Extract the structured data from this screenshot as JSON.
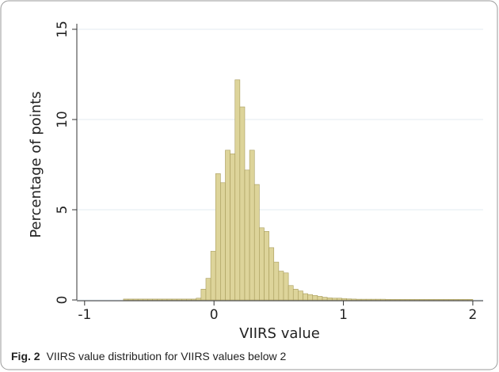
{
  "chart_data": {
    "type": "histogram",
    "xlabel": "VIIRS value",
    "ylabel": "Percentage of points",
    "bins": [
      -0.7,
      -0.6625,
      -0.625,
      -0.5875,
      -0.55,
      -0.5125,
      -0.475,
      -0.4375,
      -0.4,
      -0.3625,
      -0.325,
      -0.2875,
      -0.25,
      -0.2125,
      -0.175,
      -0.1375,
      -0.1,
      -0.0625,
      -0.025,
      0.0125,
      0.05,
      0.0875,
      0.125,
      0.1625,
      0.2,
      0.2375,
      0.275,
      0.3125,
      0.35,
      0.3875,
      0.425,
      0.4625,
      0.5,
      0.5375,
      0.575,
      0.6125,
      0.65,
      0.6875,
      0.725,
      0.7625,
      0.8,
      0.8375,
      0.875,
      0.9125,
      0.95,
      0.9875,
      1.025,
      1.0625,
      1.1,
      1.1375,
      1.175,
      1.2125,
      1.25,
      1.2875,
      1.325,
      1.3625,
      1.4,
      1.4375,
      1.475,
      1.5125,
      1.55,
      1.5875,
      1.625,
      1.6625,
      1.7,
      1.7375,
      1.775,
      1.8125,
      1.85,
      1.8875,
      1.925,
      1.9625,
      2.0
    ],
    "values": [
      0.05,
      0.05,
      0.05,
      0.05,
      0.05,
      0.05,
      0.05,
      0.05,
      0.05,
      0.05,
      0.05,
      0.05,
      0.05,
      0.05,
      0.05,
      0.1,
      0.6,
      1.2,
      2.7,
      7.0,
      6.5,
      8.3,
      8.1,
      12.2,
      10.7,
      7.2,
      8.3,
      6.4,
      4.0,
      3.8,
      2.9,
      2.1,
      1.6,
      1.5,
      0.8,
      0.6,
      0.5,
      0.35,
      0.3,
      0.25,
      0.2,
      0.15,
      0.12,
      0.1,
      0.1,
      0.08,
      0.06,
      0.05,
      0.04,
      0.04,
      0.04,
      0.04,
      0.04,
      0.04,
      0.03,
      0.03,
      0.03,
      0.03,
      0.03,
      0.03,
      0.03,
      0.03,
      0.03,
      0.03,
      0.03,
      0.03,
      0.03,
      0.03,
      0.03,
      0.03,
      0.03,
      0.03
    ],
    "color": "#ddd49a",
    "edgecolor": "#a89c5c",
    "xlim": [
      -1.06,
      2.08
    ],
    "xticks": [
      -1,
      0,
      1,
      2
    ],
    "ylim": [
      0,
      15
    ],
    "yticks": [
      0,
      5,
      10,
      15
    ],
    "grid": true
  },
  "caption": {
    "label": "Fig. 2",
    "text": "VIIRS value distribution for VIIRS values below 2"
  }
}
